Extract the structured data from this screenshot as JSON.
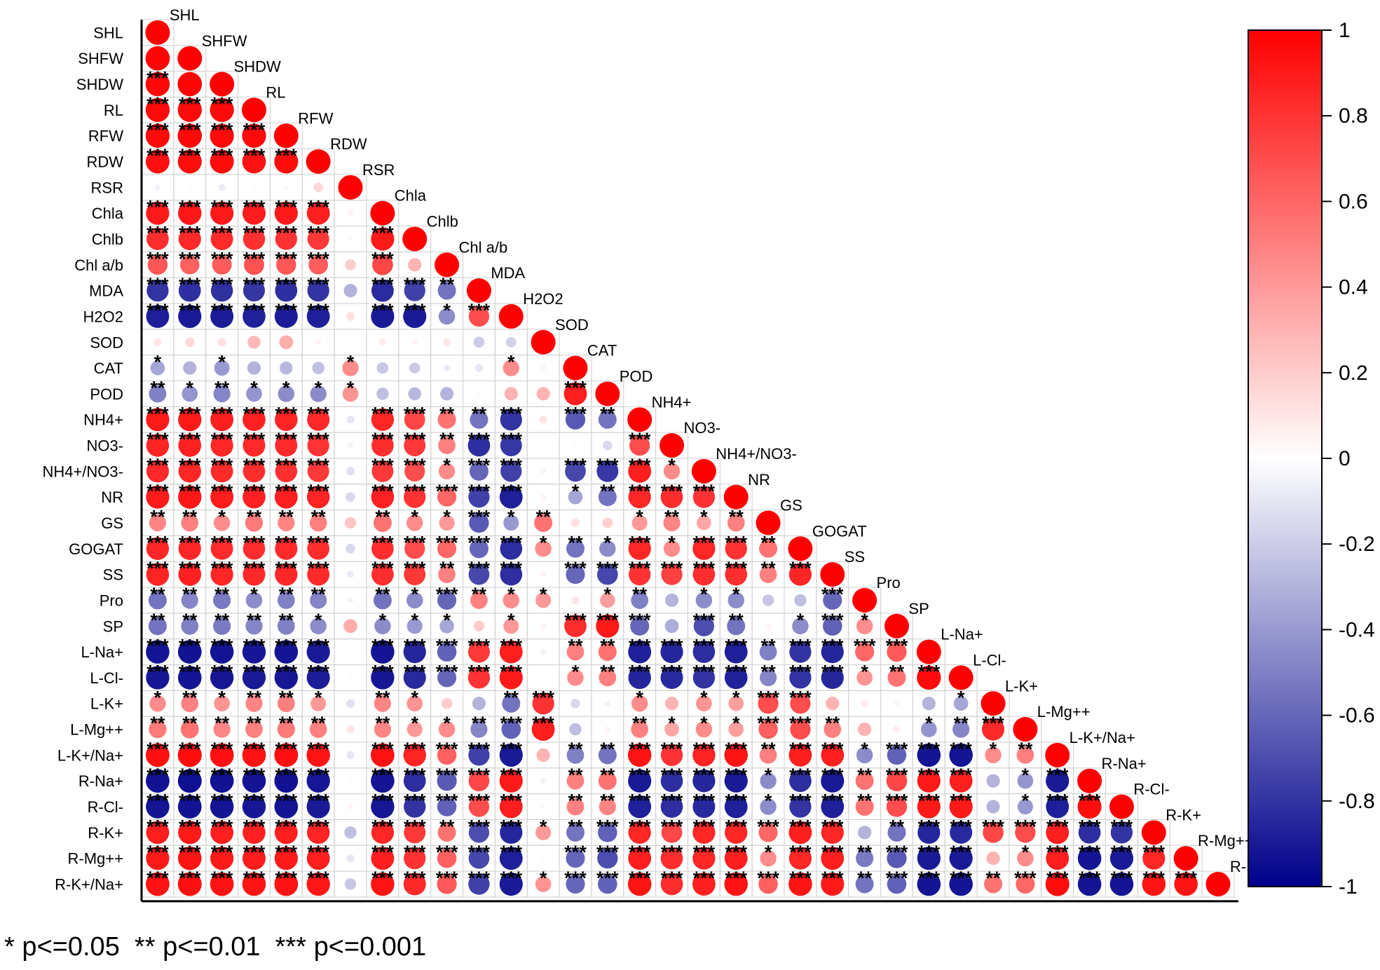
{
  "chart_data": {
    "type": "heatmap",
    "variables": [
      "SHL",
      "SHFW",
      "SHDW",
      "RL",
      "RFW",
      "RDW",
      "RSR",
      "Chla",
      "Chlb",
      "Chl a/b",
      "MDA",
      "H2O2",
      "SOD",
      "CAT",
      "POD",
      "NH4+",
      "NO3-",
      "NH4+/NO3-",
      "NR",
      "GS",
      "GOGAT",
      "SS",
      "Pro",
      "SP",
      "L-Na+",
      "L-Cl-",
      "L-K+",
      "L-Mg++",
      "L-K+/Na+",
      "R-Na+",
      "R-Cl-",
      "R-K+",
      "R-Mg++",
      "R-K+/Na+"
    ],
    "diagonal_labels": [
      "SHL",
      "SHFW",
      "SHDW",
      "RL",
      "RFW",
      "RDW",
      "RSR",
      "Chla",
      "Chlb",
      "Chl a/b",
      "MDA",
      "H2O2",
      "SOD",
      "CAT",
      "POD",
      "NH4+",
      "NO3-",
      "NH4+/NO3-",
      "NR",
      "GS",
      "GOGAT",
      "SS",
      "Pro",
      "SP",
      "L-Na+",
      "L-Cl-",
      "L-K+",
      "L-Mg++",
      "L-K+/Na+",
      "R-Na+",
      "R-Cl-",
      "R-K+",
      "R-Mg++",
      "R-K+/Na"
    ],
    "correlations": [
      [
        1
      ],
      [
        0.98,
        1
      ],
      [
        0.97,
        0.98,
        1
      ],
      [
        0.96,
        0.96,
        0.96,
        1
      ],
      [
        0.96,
        0.97,
        0.96,
        0.96,
        1
      ],
      [
        0.94,
        0.95,
        0.95,
        0.93,
        0.95,
        1
      ],
      [
        -0.05,
        0.02,
        -0.08,
        0.02,
        0.03,
        0.15,
        1
      ],
      [
        0.9,
        0.91,
        0.9,
        0.89,
        0.9,
        0.88,
        0.05,
        1
      ],
      [
        0.82,
        0.84,
        0.83,
        0.81,
        0.8,
        0.78,
        0.03,
        0.9,
        1
      ],
      [
        0.66,
        0.62,
        0.64,
        0.68,
        0.66,
        0.63,
        0.2,
        0.72,
        0.3,
        1
      ],
      [
        -0.8,
        -0.82,
        -0.81,
        -0.79,
        -0.82,
        -0.8,
        -0.3,
        -0.83,
        -0.75,
        -0.55,
        1
      ],
      [
        -0.88,
        -0.9,
        -0.89,
        -0.87,
        -0.89,
        -0.88,
        0.12,
        -0.9,
        -0.9,
        -0.45,
        0.7,
        1
      ],
      [
        0.1,
        0.15,
        0.12,
        0.28,
        0.32,
        0.05,
        0,
        0.08,
        0.05,
        0.1,
        -0.2,
        -0.18,
        1
      ],
      [
        -0.35,
        -0.3,
        -0.4,
        -0.3,
        -0.28,
        -0.25,
        0.45,
        -0.22,
        -0.2,
        -0.08,
        -0.1,
        0.45,
        0.05,
        1
      ],
      [
        -0.5,
        -0.42,
        -0.48,
        -0.42,
        -0.45,
        -0.45,
        0.42,
        -0.25,
        -0.28,
        -0.3,
        0.02,
        0.3,
        0.3,
        0.88,
        1
      ],
      [
        0.9,
        0.9,
        0.88,
        0.87,
        0.86,
        0.84,
        -0.1,
        0.85,
        0.72,
        0.55,
        -0.55,
        -0.8,
        0.1,
        -0.65,
        -0.55,
        1
      ],
      [
        0.86,
        0.87,
        0.85,
        0.84,
        0.83,
        0.8,
        -0.05,
        0.82,
        0.78,
        0.5,
        -0.82,
        -0.78,
        0,
        -0.02,
        -0.15,
        0.7,
        1
      ],
      [
        0.84,
        0.85,
        0.83,
        0.82,
        0.81,
        0.78,
        -0.12,
        0.78,
        0.7,
        0.45,
        -0.6,
        -0.75,
        0.05,
        -0.72,
        -0.78,
        0.88,
        0.45,
        1
      ],
      [
        0.9,
        0.91,
        0.89,
        0.87,
        0.88,
        0.86,
        -0.15,
        0.87,
        0.8,
        0.6,
        -0.75,
        -0.88,
        0.05,
        -0.35,
        -0.55,
        0.85,
        0.82,
        0.8,
        1
      ],
      [
        0.48,
        0.5,
        0.45,
        0.52,
        0.48,
        0.5,
        0.22,
        0.55,
        0.45,
        0.4,
        -0.65,
        -0.4,
        0.55,
        0.12,
        0.18,
        0.4,
        0.48,
        0.35,
        0.5,
        1
      ],
      [
        0.85,
        0.85,
        0.83,
        0.82,
        0.84,
        0.82,
        -0.15,
        0.82,
        0.7,
        0.6,
        -0.6,
        -0.82,
        0.45,
        -0.55,
        -0.45,
        0.85,
        0.45,
        0.85,
        0.8,
        0.55,
        1
      ],
      [
        0.86,
        0.87,
        0.85,
        0.84,
        0.85,
        0.83,
        -0.08,
        0.82,
        0.78,
        0.5,
        -0.72,
        -0.82,
        0.05,
        -0.6,
        -0.72,
        0.8,
        0.75,
        0.82,
        0.82,
        0.5,
        0.85,
        1
      ],
      [
        -0.55,
        -0.48,
        -0.52,
        -0.45,
        -0.5,
        -0.48,
        -0.05,
        -0.55,
        -0.45,
        -0.6,
        0.5,
        0.45,
        0.4,
        0.1,
        0.38,
        -0.5,
        -0.3,
        -0.45,
        -0.45,
        -0.22,
        -0.25,
        -0.6,
        1
      ],
      [
        -0.55,
        -0.5,
        -0.52,
        -0.48,
        -0.5,
        -0.45,
        0.32,
        -0.45,
        -0.4,
        -0.35,
        0.2,
        0.4,
        0.05,
        0.82,
        0.9,
        -0.6,
        -0.32,
        -0.7,
        -0.55,
        0.05,
        -0.45,
        -0.62,
        0.45,
        1
      ],
      [
        -0.92,
        -0.93,
        -0.92,
        -0.91,
        -0.92,
        -0.9,
        0,
        -0.92,
        -0.85,
        -0.62,
        0.78,
        0.88,
        -0.05,
        0.5,
        0.55,
        -0.88,
        -0.85,
        -0.82,
        -0.88,
        -0.5,
        -0.8,
        -0.85,
        0.6,
        0.65,
        1
      ],
      [
        -0.91,
        -0.92,
        -0.91,
        -0.9,
        -0.91,
        -0.89,
        0.02,
        -0.91,
        -0.84,
        -0.6,
        0.8,
        0.9,
        0,
        0.45,
        0.5,
        -0.86,
        -0.84,
        -0.8,
        -0.87,
        -0.48,
        -0.8,
        -0.85,
        0.42,
        0.55,
        0.96,
        1
      ],
      [
        0.45,
        0.5,
        0.42,
        0.48,
        0.5,
        0.4,
        -0.12,
        0.48,
        0.42,
        0.2,
        -0.3,
        -0.55,
        0.8,
        -0.15,
        -0.05,
        0.45,
        0.3,
        0.42,
        0.38,
        0.7,
        0.7,
        0.3,
        0.08,
        0.05,
        -0.3,
        -0.35,
        1
      ],
      [
        0.52,
        0.55,
        0.48,
        0.5,
        0.52,
        0.5,
        0.1,
        0.48,
        0.4,
        0.45,
        -0.48,
        -0.62,
        0.88,
        -0.25,
        0.05,
        0.5,
        0.35,
        0.45,
        0.38,
        0.62,
        0.7,
        0.5,
        0.3,
        0.08,
        -0.42,
        -0.48,
        0.84,
        1
      ],
      [
        0.94,
        0.95,
        0.94,
        0.93,
        0.94,
        0.92,
        -0.1,
        0.93,
        0.86,
        0.62,
        -0.75,
        -0.9,
        0.3,
        -0.5,
        -0.55,
        0.92,
        0.8,
        0.86,
        0.92,
        0.5,
        0.88,
        0.88,
        -0.45,
        -0.62,
        -0.92,
        -0.92,
        0.45,
        0.5,
        1
      ],
      [
        -0.93,
        -0.94,
        -0.93,
        -0.92,
        -0.93,
        -0.91,
        0.02,
        -0.92,
        -0.82,
        -0.65,
        0.72,
        0.9,
        -0.05,
        0.5,
        0.55,
        -0.9,
        -0.82,
        -0.85,
        -0.9,
        -0.45,
        -0.82,
        -0.9,
        0.55,
        0.72,
        0.9,
        0.88,
        -0.3,
        -0.42,
        -0.9,
        1
      ],
      [
        -0.92,
        -0.93,
        -0.92,
        -0.91,
        -0.92,
        -0.9,
        0.05,
        -0.91,
        -0.8,
        -0.62,
        0.7,
        0.88,
        -0.02,
        0.5,
        0.48,
        -0.88,
        -0.82,
        -0.84,
        -0.88,
        -0.45,
        -0.8,
        -0.88,
        0.55,
        0.7,
        0.9,
        0.9,
        -0.3,
        -0.4,
        -0.88,
        0.95,
        1
      ],
      [
        0.88,
        0.9,
        0.88,
        0.87,
        0.88,
        0.86,
        -0.25,
        0.85,
        0.78,
        0.55,
        -0.7,
        -0.85,
        0.4,
        -0.55,
        -0.62,
        0.85,
        0.72,
        0.85,
        0.85,
        0.6,
        0.88,
        0.85,
        -0.3,
        -0.55,
        -0.85,
        -0.84,
        0.72,
        0.7,
        0.88,
        -0.82,
        -0.8,
        1
      ],
      [
        0.9,
        0.92,
        0.9,
        0.89,
        0.9,
        0.88,
        -0.1,
        0.88,
        0.8,
        0.62,
        -0.72,
        -0.88,
        0.02,
        -0.6,
        -0.7,
        0.88,
        0.82,
        0.85,
        0.88,
        0.45,
        0.85,
        0.88,
        -0.52,
        -0.65,
        -0.9,
        -0.9,
        0.3,
        0.45,
        0.88,
        -0.92,
        -0.9,
        0.85,
        1
      ],
      [
        0.93,
        0.94,
        0.93,
        0.92,
        0.93,
        0.91,
        -0.22,
        0.92,
        0.84,
        0.65,
        -0.75,
        -0.9,
        0.42,
        -0.6,
        -0.62,
        0.92,
        0.82,
        0.88,
        0.92,
        0.62,
        0.92,
        0.9,
        -0.55,
        -0.62,
        -0.92,
        -0.92,
        0.55,
        0.6,
        0.95,
        -0.92,
        -0.92,
        0.92,
        0.92,
        1
      ]
    ],
    "significance_note": "* p<=0.05  ** p<=0.01  *** p<=0.001",
    "colorbar": {
      "range": [
        -1,
        1
      ],
      "ticks": [
        "1",
        "0.8",
        "0.6",
        "0.4",
        "0.2",
        "0",
        "-0.2",
        "-0.4",
        "-0.6",
        "-0.8",
        "-1"
      ],
      "colors": {
        "low": "#00008b",
        "mid": "#ffffff",
        "high": "#ff0000"
      }
    },
    "grid": true,
    "legend_position": "right"
  }
}
